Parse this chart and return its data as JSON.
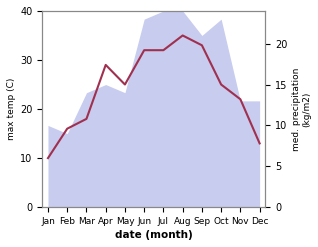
{
  "months": [
    "Jan",
    "Feb",
    "Mar",
    "Apr",
    "May",
    "Jun",
    "Jul",
    "Aug",
    "Sep",
    "Oct",
    "Nov",
    "Dec"
  ],
  "x": [
    0,
    1,
    2,
    3,
    4,
    5,
    6,
    7,
    8,
    9,
    10,
    11
  ],
  "temp": [
    10,
    16,
    18,
    29,
    25,
    32,
    32,
    35,
    33,
    25,
    22,
    13
  ],
  "precip": [
    10,
    9,
    14,
    15,
    14,
    23,
    24,
    24,
    21,
    23,
    13,
    13
  ],
  "temp_color": "#a03050",
  "precip_color_fill": "#c8ccee",
  "temp_ylim": [
    0,
    40
  ],
  "precip_ylim": [
    0,
    24
  ],
  "precip_yticks": [
    0,
    5,
    10,
    15,
    20
  ],
  "temp_yticks": [
    0,
    10,
    20,
    30,
    40
  ],
  "ylabel_left": "max temp (C)",
  "ylabel_right": "med. precipitation\n(kg/m2)",
  "xlabel": "date (month)",
  "background_color": "#ffffff",
  "spine_color": "#888888",
  "tick_color": "#444444"
}
